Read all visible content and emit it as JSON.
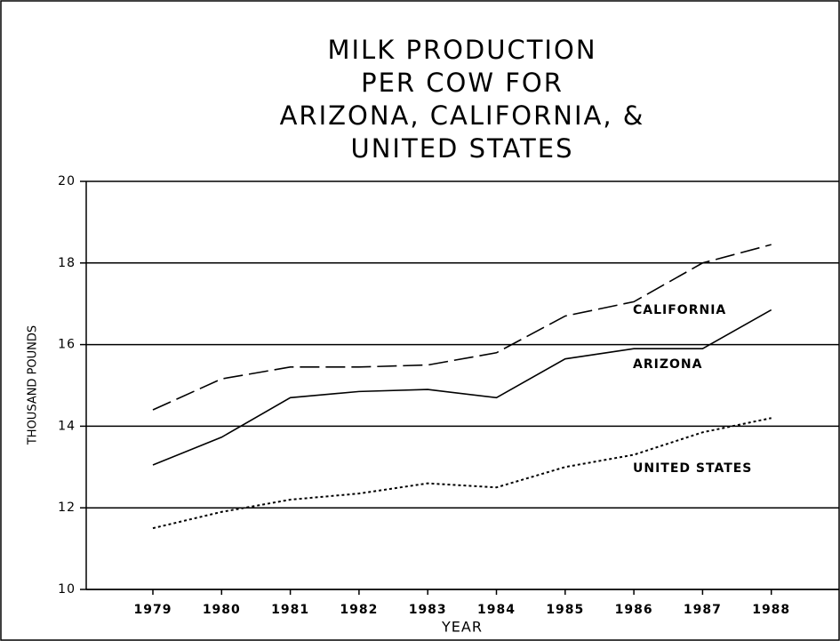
{
  "chart_data": {
    "type": "line",
    "title": [
      "MILK PRODUCTION",
      "PER COW FOR",
      "ARIZONA, CALIFORNIA, &",
      "UNITED STATES"
    ],
    "x_label": "YEAR",
    "y_label": "THOUSAND POUNDS",
    "categories": [
      "1979",
      "1980",
      "1981",
      "1982",
      "1983",
      "1984",
      "1985",
      "1986",
      "1987",
      "1988"
    ],
    "series": [
      {
        "name": "CALIFORNIA",
        "color": "#000000",
        "style": "dashed",
        "values": [
          14.4,
          15.16,
          15.45,
          15.45,
          15.5,
          15.8,
          16.7,
          17.05,
          18.0,
          18.45
        ]
      },
      {
        "name": "ARIZONA",
        "color": "#000000",
        "style": "solid",
        "values": [
          13.05,
          13.73,
          14.7,
          14.85,
          14.9,
          14.7,
          15.65,
          15.9,
          15.9,
          16.85
        ]
      },
      {
        "name": "UNITED STATES",
        "color": "#000000",
        "style": "dotted",
        "values": [
          11.5,
          11.9,
          12.2,
          12.35,
          12.6,
          12.5,
          13.0,
          13.3,
          13.85,
          14.2
        ]
      }
    ],
    "ylim": [
      10,
      20
    ],
    "yticks": [
      10,
      12,
      14,
      16,
      18,
      20
    ],
    "grid": true
  }
}
